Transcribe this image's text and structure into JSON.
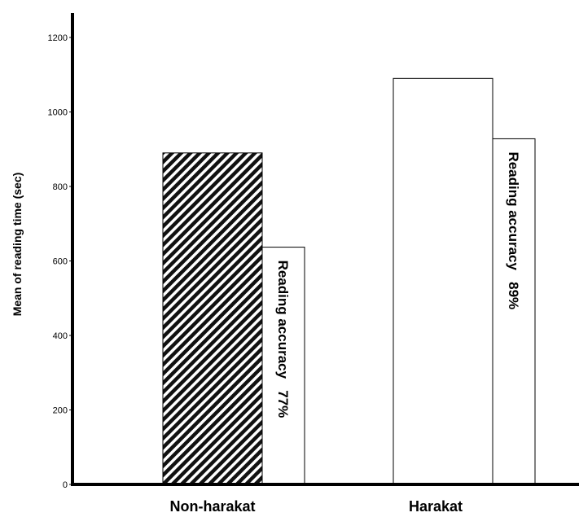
{
  "chart_data": {
    "type": "bar",
    "title": "",
    "xlabel": "",
    "ylabel": "Mean of reading time (sec)",
    "ylim": [
      0,
      1250
    ],
    "yticks": [
      0,
      200,
      400,
      600,
      800,
      1000,
      1200
    ],
    "categories": [
      "Non-harakat",
      "Harakat"
    ],
    "series": [
      {
        "values": [
          890,
          1090
        ],
        "pattern": [
          "diagonal-hatch",
          "none"
        ]
      },
      {
        "values": [
          637,
          928
        ]
      }
    ],
    "annotations": [
      {
        "category": "Non-harakat",
        "text": "Reading accuracy   77%"
      },
      {
        "category": "Harakat",
        "text": "Reading accuracy   89%"
      }
    ],
    "grid": false,
    "legend": "none"
  }
}
